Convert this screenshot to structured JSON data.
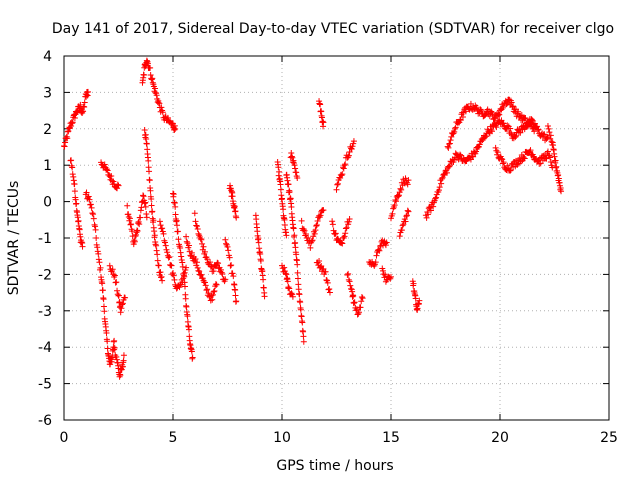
{
  "chart_data": {
    "type": "scatter",
    "title": "Day 141 of 2017, Sidereal Day-to-day VTEC variation (SDTVAR) for receiver clgo",
    "xlabel": "GPS time / hours",
    "ylabel": "SDTVAR / TECUs",
    "xlim": [
      0,
      25
    ],
    "ylim": [
      -6,
      4
    ],
    "xticks": [
      "0",
      "5",
      "10",
      "15",
      "20",
      "25"
    ],
    "yticks": [
      "4",
      "3",
      "2",
      "1",
      "0",
      "-1",
      "-2",
      "-3",
      "-4",
      "-5",
      "-6"
    ],
    "grid": true,
    "marker": "+",
    "color": "#ff0000",
    "series_tracks": [
      {
        "name": "track-1",
        "points": [
          [
            0.0,
            1.5
          ],
          [
            0.15,
            1.8
          ],
          [
            0.3,
            2.1
          ],
          [
            0.45,
            2.3
          ],
          [
            0.6,
            2.5
          ],
          [
            0.75,
            2.6
          ],
          [
            0.85,
            2.4
          ],
          [
            1.0,
            2.9
          ],
          [
            1.1,
            3.0
          ]
        ]
      },
      {
        "name": "track-2",
        "points": [
          [
            0.3,
            1.2
          ],
          [
            0.45,
            0.6
          ],
          [
            0.55,
            0.0
          ],
          [
            0.65,
            -0.5
          ],
          [
            0.75,
            -1.0
          ],
          [
            0.85,
            -1.2
          ]
        ]
      },
      {
        "name": "track-3",
        "points": [
          [
            1.0,
            0.2
          ],
          [
            1.2,
            0.0
          ],
          [
            1.4,
            -0.6
          ],
          [
            1.55,
            -1.4
          ],
          [
            1.7,
            -2.0
          ],
          [
            1.8,
            -2.6
          ],
          [
            1.9,
            -3.4
          ],
          [
            2.0,
            -4.0
          ],
          [
            2.1,
            -4.5
          ],
          [
            2.2,
            -4.3
          ],
          [
            2.3,
            -3.8
          ]
        ]
      },
      {
        "name": "track-4",
        "points": [
          [
            1.7,
            1.1
          ],
          [
            1.9,
            0.9
          ],
          [
            2.1,
            0.7
          ],
          [
            2.3,
            0.5
          ],
          [
            2.5,
            0.4
          ]
        ]
      },
      {
        "name": "track-5",
        "points": [
          [
            2.1,
            -1.8
          ],
          [
            2.3,
            -2.0
          ],
          [
            2.5,
            -2.6
          ],
          [
            2.6,
            -3.0
          ],
          [
            2.8,
            -2.6
          ]
        ]
      },
      {
        "name": "track-6",
        "points": [
          [
            2.3,
            -4.0
          ],
          [
            2.45,
            -4.4
          ],
          [
            2.55,
            -4.8
          ],
          [
            2.65,
            -4.6
          ],
          [
            2.75,
            -4.3
          ]
        ]
      },
      {
        "name": "track-7",
        "points": [
          [
            2.9,
            -0.2
          ],
          [
            3.05,
            -0.6
          ],
          [
            3.2,
            -1.2
          ],
          [
            3.35,
            -0.8
          ],
          [
            3.5,
            -0.4
          ],
          [
            3.65,
            0.2
          ],
          [
            3.8,
            -0.4
          ]
        ]
      },
      {
        "name": "track-8",
        "points": [
          [
            3.6,
            3.2
          ],
          [
            3.7,
            3.7
          ],
          [
            3.8,
            3.9
          ],
          [
            3.95,
            3.6
          ],
          [
            4.1,
            3.2
          ],
          [
            4.25,
            2.9
          ],
          [
            4.4,
            2.6
          ],
          [
            4.6,
            2.3
          ],
          [
            4.8,
            2.2
          ],
          [
            5.0,
            2.1
          ],
          [
            5.1,
            2.0
          ]
        ]
      },
      {
        "name": "track-9",
        "points": [
          [
            3.7,
            2.0
          ],
          [
            3.8,
            1.5
          ],
          [
            3.9,
            0.8
          ],
          [
            4.0,
            0.0
          ],
          [
            4.1,
            -0.6
          ],
          [
            4.2,
            -1.2
          ],
          [
            4.35,
            -1.8
          ],
          [
            4.5,
            -2.2
          ]
        ]
      },
      {
        "name": "track-10",
        "points": [
          [
            4.4,
            -0.5
          ],
          [
            4.6,
            -1.0
          ],
          [
            4.8,
            -1.5
          ],
          [
            5.0,
            -2.0
          ],
          [
            5.2,
            -2.4
          ],
          [
            5.4,
            -2.2
          ],
          [
            5.6,
            -1.8
          ]
        ]
      },
      {
        "name": "track-11",
        "points": [
          [
            5.0,
            0.3
          ],
          [
            5.1,
            -0.2
          ],
          [
            5.2,
            -0.8
          ],
          [
            5.35,
            -1.4
          ],
          [
            5.5,
            -2.0
          ],
          [
            5.6,
            -2.8
          ],
          [
            5.7,
            -3.4
          ],
          [
            5.8,
            -4.0
          ],
          [
            5.9,
            -4.3
          ]
        ]
      },
      {
        "name": "track-12",
        "points": [
          [
            5.6,
            -1.0
          ],
          [
            5.8,
            -1.4
          ],
          [
            6.0,
            -1.6
          ],
          [
            6.2,
            -1.9
          ],
          [
            6.4,
            -2.2
          ],
          [
            6.6,
            -2.5
          ],
          [
            6.8,
            -2.7
          ],
          [
            7.0,
            -2.2
          ]
        ]
      },
      {
        "name": "track-13",
        "points": [
          [
            6.0,
            -0.4
          ],
          [
            6.2,
            -0.9
          ],
          [
            6.4,
            -1.3
          ],
          [
            6.6,
            -1.6
          ],
          [
            6.8,
            -1.9
          ],
          [
            7.0,
            -1.7
          ],
          [
            7.2,
            -1.9
          ],
          [
            7.4,
            -2.2
          ]
        ]
      },
      {
        "name": "track-14",
        "points": [
          [
            7.4,
            -1.0
          ],
          [
            7.6,
            -1.6
          ],
          [
            7.8,
            -2.2
          ],
          [
            7.9,
            -2.8
          ]
        ]
      },
      {
        "name": "track-15",
        "points": [
          [
            7.6,
            0.4
          ],
          [
            7.7,
            0.2
          ],
          [
            7.8,
            -0.1
          ],
          [
            7.9,
            -0.4
          ]
        ]
      },
      {
        "name": "track-16",
        "points": [
          [
            8.8,
            -0.4
          ],
          [
            8.9,
            -1.0
          ],
          [
            9.0,
            -1.5
          ],
          [
            9.1,
            -2.0
          ],
          [
            9.2,
            -2.6
          ]
        ]
      },
      {
        "name": "track-17",
        "points": [
          [
            9.8,
            1.0
          ],
          [
            9.9,
            0.6
          ],
          [
            10.0,
            0.0
          ],
          [
            10.1,
            -0.5
          ],
          [
            10.2,
            -1.0
          ]
        ]
      },
      {
        "name": "track-18",
        "points": [
          [
            10.0,
            -1.8
          ],
          [
            10.2,
            -2.0
          ],
          [
            10.3,
            -2.4
          ],
          [
            10.5,
            -2.6
          ]
        ]
      },
      {
        "name": "track-19",
        "points": [
          [
            10.2,
            0.8
          ],
          [
            10.3,
            0.4
          ],
          [
            10.4,
            0.0
          ],
          [
            10.5,
            -0.6
          ],
          [
            10.6,
            -1.2
          ],
          [
            10.7,
            -1.8
          ],
          [
            10.8,
            -2.6
          ],
          [
            10.9,
            -3.2
          ],
          [
            11.0,
            -3.8
          ]
        ]
      },
      {
        "name": "track-20",
        "points": [
          [
            10.4,
            1.3
          ],
          [
            10.55,
            1.0
          ],
          [
            10.7,
            0.6
          ]
        ]
      },
      {
        "name": "track-21",
        "points": [
          [
            10.9,
            -0.6
          ],
          [
            11.1,
            -0.9
          ],
          [
            11.3,
            -1.2
          ],
          [
            11.5,
            -0.8
          ],
          [
            11.7,
            -0.4
          ],
          [
            11.9,
            -0.2
          ]
        ]
      },
      {
        "name": "track-22",
        "points": [
          [
            11.7,
            2.8
          ],
          [
            11.8,
            2.4
          ],
          [
            11.9,
            2.1
          ]
        ]
      },
      {
        "name": "track-23",
        "points": [
          [
            11.6,
            -1.6
          ],
          [
            11.8,
            -1.8
          ],
          [
            12.0,
            -2.0
          ],
          [
            12.2,
            -2.5
          ]
        ]
      },
      {
        "name": "track-24",
        "points": [
          [
            12.3,
            -0.6
          ],
          [
            12.5,
            -1.0
          ],
          [
            12.7,
            -1.2
          ],
          [
            12.9,
            -0.8
          ],
          [
            13.1,
            -0.4
          ]
        ]
      },
      {
        "name": "track-25",
        "points": [
          [
            12.5,
            0.4
          ],
          [
            12.7,
            0.7
          ],
          [
            12.9,
            1.1
          ],
          [
            13.1,
            1.4
          ],
          [
            13.3,
            1.6
          ]
        ]
      },
      {
        "name": "track-26",
        "points": [
          [
            13.0,
            -2.0
          ],
          [
            13.2,
            -2.4
          ],
          [
            13.3,
            -2.8
          ],
          [
            13.5,
            -3.1
          ],
          [
            13.7,
            -2.6
          ]
        ]
      },
      {
        "name": "track-27",
        "points": [
          [
            14.0,
            -1.6
          ],
          [
            14.2,
            -1.8
          ],
          [
            14.4,
            -1.4
          ],
          [
            14.6,
            -1.1
          ],
          [
            14.8,
            -1.2
          ]
        ]
      },
      {
        "name": "track-28",
        "points": [
          [
            14.6,
            -1.8
          ],
          [
            14.8,
            -2.2
          ],
          [
            15.0,
            -2.0
          ]
        ]
      },
      {
        "name": "track-29",
        "points": [
          [
            15.0,
            -0.4
          ],
          [
            15.2,
            0.0
          ],
          [
            15.4,
            0.3
          ],
          [
            15.6,
            0.6
          ],
          [
            15.8,
            0.5
          ]
        ]
      },
      {
        "name": "track-30",
        "points": [
          [
            15.4,
            -1.0
          ],
          [
            15.6,
            -0.6
          ],
          [
            15.8,
            -0.2
          ]
        ]
      },
      {
        "name": "track-31",
        "points": [
          [
            16.0,
            -2.2
          ],
          [
            16.1,
            -2.6
          ],
          [
            16.2,
            -3.0
          ],
          [
            16.3,
            -2.7
          ]
        ]
      },
      {
        "name": "track-32",
        "points": [
          [
            16.6,
            -0.4
          ],
          [
            16.8,
            -0.2
          ],
          [
            17.0,
            0.0
          ],
          [
            17.2,
            0.4
          ],
          [
            17.4,
            0.7
          ],
          [
            17.6,
            0.9
          ],
          [
            17.8,
            1.1
          ],
          [
            18.0,
            1.3
          ],
          [
            18.2,
            1.2
          ],
          [
            18.4,
            1.1
          ],
          [
            18.6,
            1.2
          ],
          [
            18.8,
            1.3
          ],
          [
            19.0,
            1.5
          ],
          [
            19.2,
            1.7
          ],
          [
            19.4,
            1.9
          ],
          [
            19.6,
            2.0
          ],
          [
            19.8,
            2.1
          ],
          [
            20.0,
            2.2
          ],
          [
            20.2,
            2.1
          ],
          [
            20.4,
            2.0
          ],
          [
            20.6,
            1.8
          ],
          [
            20.8,
            1.9
          ],
          [
            21.0,
            2.0
          ],
          [
            21.2,
            2.1
          ],
          [
            21.4,
            2.2
          ],
          [
            21.6,
            2.1
          ],
          [
            21.8,
            1.9
          ],
          [
            22.0,
            1.8
          ],
          [
            22.2,
            1.7
          ]
        ]
      },
      {
        "name": "track-33",
        "points": [
          [
            17.6,
            1.5
          ],
          [
            17.8,
            1.8
          ],
          [
            18.0,
            2.1
          ],
          [
            18.2,
            2.3
          ],
          [
            18.4,
            2.5
          ],
          [
            18.6,
            2.6
          ],
          [
            18.8,
            2.6
          ],
          [
            19.0,
            2.5
          ],
          [
            19.2,
            2.4
          ],
          [
            19.4,
            2.5
          ],
          [
            19.6,
            2.4
          ],
          [
            19.8,
            2.3
          ],
          [
            20.0,
            2.5
          ],
          [
            20.2,
            2.7
          ],
          [
            20.4,
            2.8
          ],
          [
            20.6,
            2.6
          ],
          [
            20.8,
            2.4
          ],
          [
            21.0,
            2.3
          ],
          [
            21.2,
            2.2
          ],
          [
            21.4,
            2.1
          ],
          [
            21.6,
            2.0
          ]
        ]
      },
      {
        "name": "track-34",
        "points": [
          [
            19.8,
            1.4
          ],
          [
            20.0,
            1.2
          ],
          [
            20.2,
            1.0
          ],
          [
            20.4,
            0.9
          ],
          [
            20.6,
            1.0
          ],
          [
            20.8,
            1.1
          ],
          [
            21.0,
            1.2
          ],
          [
            21.2,
            1.3
          ],
          [
            21.4,
            1.4
          ],
          [
            21.6,
            1.2
          ],
          [
            21.8,
            1.1
          ],
          [
            22.0,
            1.2
          ],
          [
            22.2,
            1.3
          ],
          [
            22.4,
            1.0
          ]
        ]
      },
      {
        "name": "track-35",
        "points": [
          [
            22.2,
            2.0
          ],
          [
            22.4,
            1.6
          ],
          [
            22.5,
            1.2
          ],
          [
            22.6,
            0.9
          ],
          [
            22.7,
            0.6
          ],
          [
            22.8,
            0.3
          ]
        ]
      }
    ]
  }
}
